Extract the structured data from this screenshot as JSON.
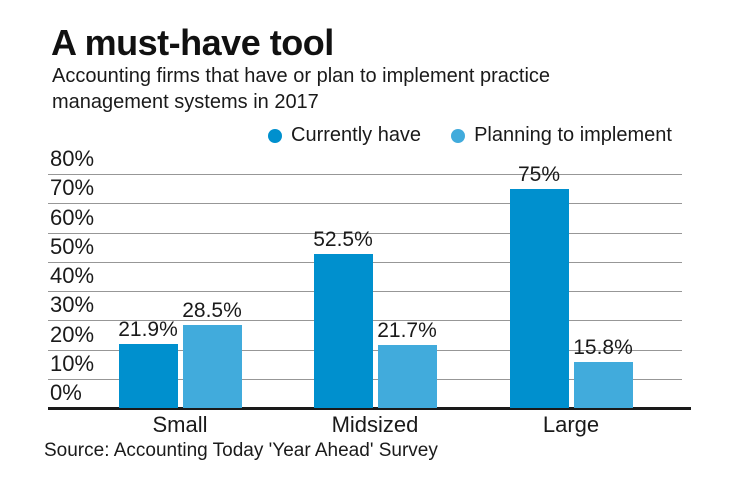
{
  "header": {
    "title": "A must-have tool",
    "subtitle_lines": [
      "Accounting firms that have or plan to implement practice",
      "management systems in 2017"
    ]
  },
  "legend": {
    "items": [
      {
        "label": "Currently have",
        "color": "#0090ce"
      },
      {
        "label": "Planning to implement",
        "color": "#41abdc"
      }
    ]
  },
  "source": "Source: Accounting Today 'Year Ahead' Survey",
  "colors": {
    "background": "#ffffff",
    "text": "#1a1a1a",
    "gridline": "#979797",
    "baseline": "#1a1a1a",
    "series_dark": "#0090ce",
    "series_light": "#41abdc"
  },
  "chart_data": {
    "type": "bar",
    "title": "A must-have tool",
    "subtitle": "Accounting firms that have or plan to implement practice management systems in 2017",
    "categories": [
      "Small",
      "Midsized",
      "Large"
    ],
    "series": [
      {
        "name": "Currently have",
        "color": "#0090ce",
        "values": [
          21.9,
          52.5,
          75
        ],
        "data_labels": [
          "21.9%",
          "52.5%",
          "75%"
        ]
      },
      {
        "name": "Planning to implement",
        "color": "#41abdc",
        "values": [
          28.5,
          21.7,
          15.8
        ],
        "data_labels": [
          "28.5%",
          "21.7%",
          "15.8%"
        ]
      }
    ],
    "xlabel": "",
    "ylabel": "",
    "ylim": [
      0,
      80
    ],
    "ytick_values": [
      80,
      70,
      60,
      50,
      40,
      30,
      20,
      10,
      0
    ],
    "ytick_labels": [
      "80%",
      "70%",
      "60%",
      "50%",
      "40%",
      "30%",
      "20%",
      "10%",
      "0%"
    ],
    "grid": true,
    "legend_position": "top"
  }
}
